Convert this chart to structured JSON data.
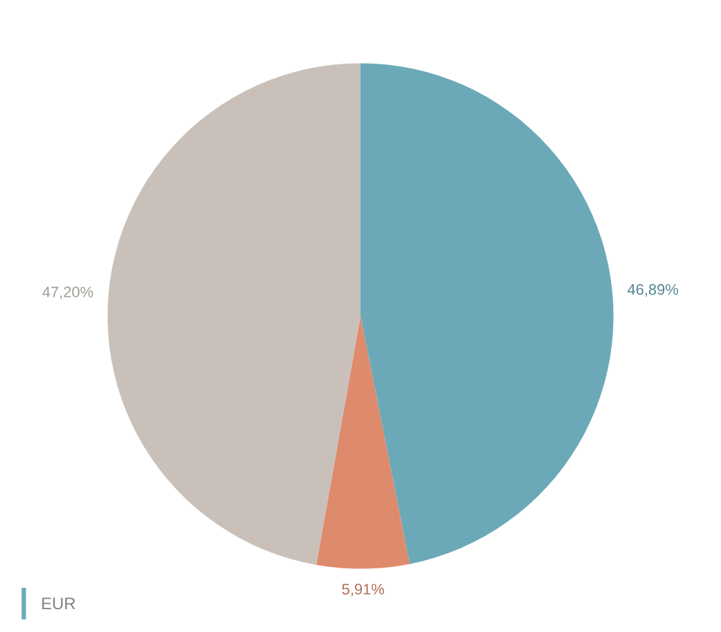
{
  "chart_data": {
    "type": "pie",
    "categories": [
      "EUR",
      null,
      null
    ],
    "values": [
      46.89,
      5.91,
      47.2
    ],
    "colors": [
      "#6ba9b8",
      "#de8a6c",
      "#c9c1b9"
    ],
    "value_labels": [
      "46,89%",
      "5,91%",
      "47,20%"
    ],
    "legend": "bottom left"
  }
}
